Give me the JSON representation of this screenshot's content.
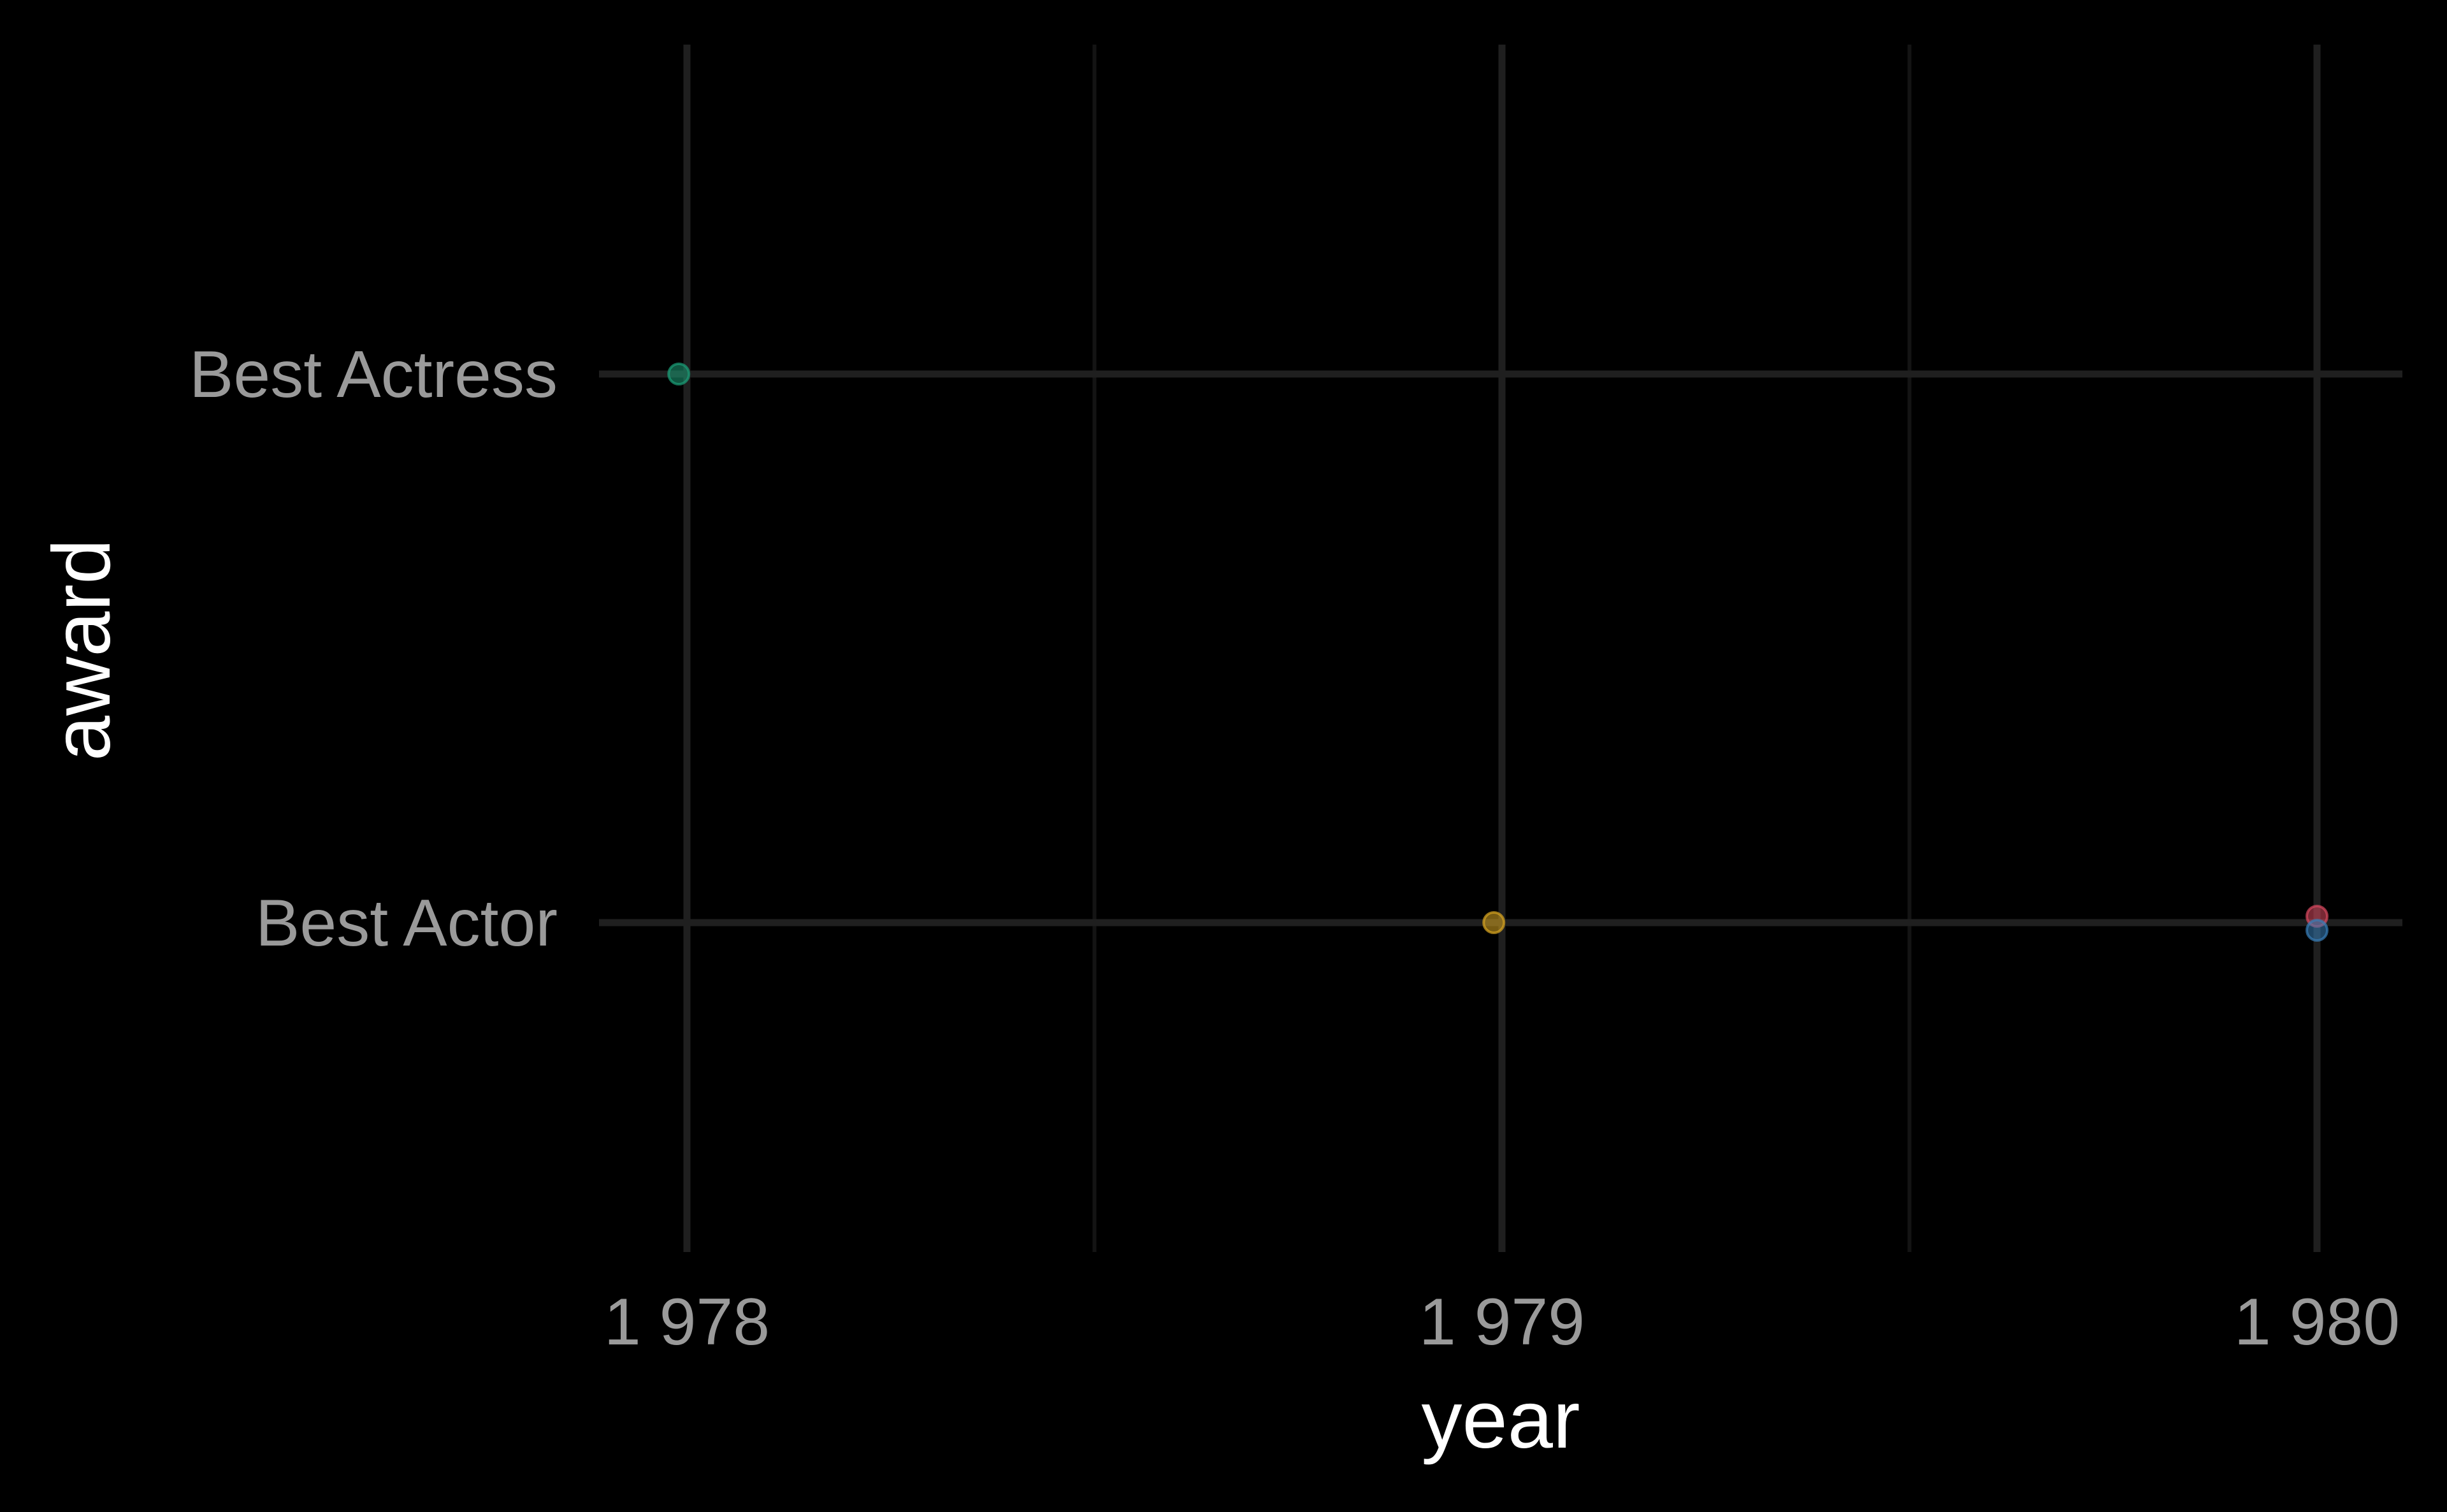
{
  "chart_data": {
    "type": "scatter",
    "title": "",
    "xlabel": "year",
    "ylabel": "award",
    "x_ticks": [
      1978,
      1979,
      1980
    ],
    "x_tick_labels": [
      "1 978",
      "1 979",
      "1 980"
    ],
    "xlim": [
      1977.95,
      1980.1
    ],
    "categories": [
      "Best Actor",
      "Best Actress"
    ],
    "grid": true,
    "legend": "none",
    "colors": {
      "background": "#000000",
      "grid_major": "#1f1f1f",
      "grid_minor": "#141414",
      "tick_text": "#9a9a9a",
      "axis_title": "#ffffff"
    },
    "points": [
      {
        "x": 1977.99,
        "y": "Best Actress",
        "color": "#1b9e77"
      },
      {
        "x": 1978.99,
        "y": "Best Actor",
        "color": "#d9a521"
      },
      {
        "x": 1980.0,
        "y": "Best Actor",
        "color": "#d9485f"
      },
      {
        "x": 1980.0,
        "y": "Best Actor",
        "color": "#377eb8"
      }
    ]
  }
}
